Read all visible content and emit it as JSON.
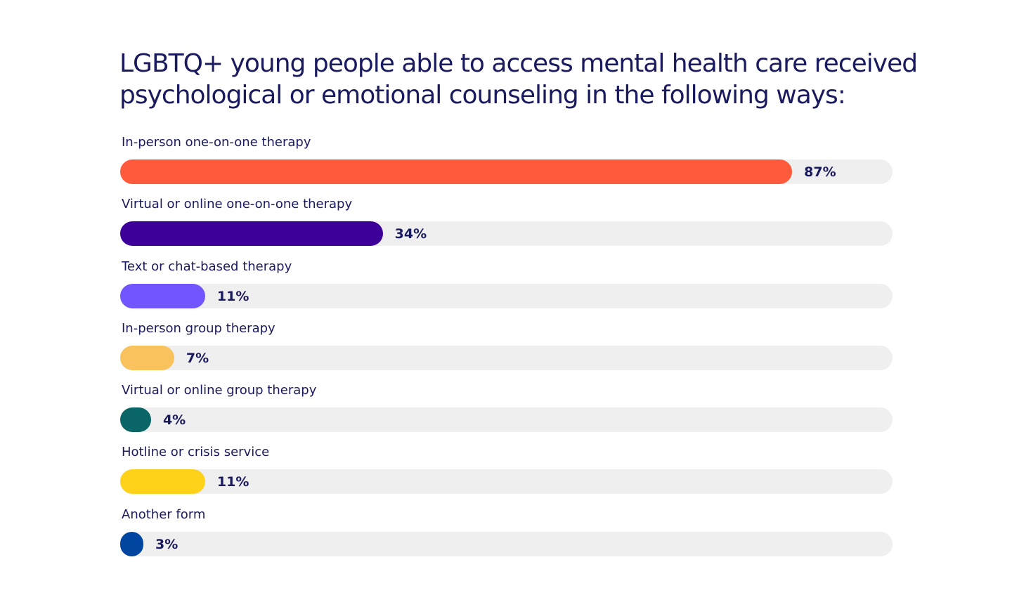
{
  "chart_data": {
    "type": "bar",
    "orientation": "horizontal",
    "title": "LGBTQ+ young people able to access mental health care received psychological or emotional counseling in the following ways:",
    "categories": [
      "In-person one-on-one therapy",
      "Virtual or online one-on-one therapy",
      "Text or chat-based therapy",
      "In-person group therapy",
      "Virtual or online group therapy",
      "Hotline or crisis service",
      "Another form"
    ],
    "values": [
      87,
      34,
      11,
      7,
      4,
      11,
      3
    ],
    "value_labels": [
      "87%",
      "34%",
      "11%",
      "7%",
      "4%",
      "11%",
      "3%"
    ],
    "colors": [
      "#ff5a3c",
      "#3d0099",
      "#7355ff",
      "#f9c25c",
      "#0a6666",
      "#ffd21a",
      "#0045a0"
    ],
    "track_color": "#efefef",
    "xlim": [
      0,
      100
    ],
    "xlabel": "",
    "ylabel": "",
    "grid": false,
    "legend": "none"
  }
}
